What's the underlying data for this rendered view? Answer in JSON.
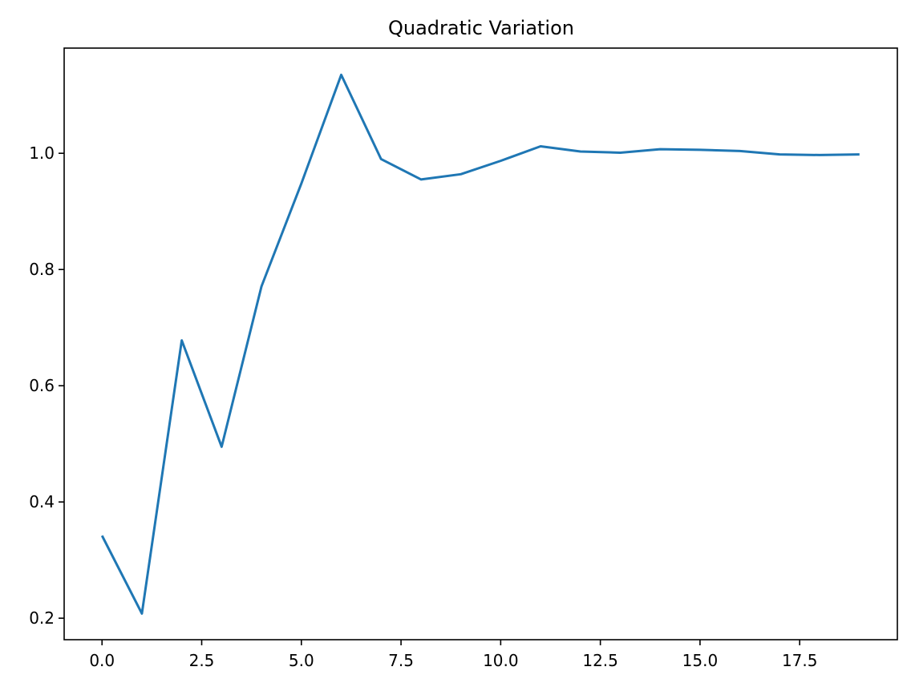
{
  "chart_data": {
    "type": "line",
    "title": "Quadratic Variation",
    "xlabel": "",
    "ylabel": "",
    "xlim": [
      -0.95,
      19.95
    ],
    "ylim": [
      0.163,
      1.181
    ],
    "x_ticks": [
      0.0,
      2.5,
      5.0,
      7.5,
      10.0,
      12.5,
      15.0,
      17.5
    ],
    "x_tick_labels": [
      "0.0",
      "2.5",
      "5.0",
      "7.5",
      "10.0",
      "12.5",
      "15.0",
      "17.5"
    ],
    "y_ticks": [
      0.2,
      0.4,
      0.6,
      0.8,
      1.0
    ],
    "y_tick_labels": [
      "0.2",
      "0.4",
      "0.6",
      "0.8",
      "1.0"
    ],
    "grid": false,
    "legend": "none",
    "series": [
      {
        "color": "#1f77b4",
        "x": [
          0,
          1,
          2,
          3,
          4,
          5,
          6,
          7,
          8,
          9,
          10,
          11,
          12,
          13,
          14,
          15,
          16,
          17,
          18,
          19
        ],
        "values": [
          0.342,
          0.208,
          0.678,
          0.495,
          0.771,
          0.948,
          1.135,
          0.99,
          0.955,
          0.964,
          0.987,
          1.012,
          1.003,
          1.001,
          1.007,
          1.006,
          1.004,
          0.998,
          0.997,
          0.998
        ]
      }
    ]
  }
}
